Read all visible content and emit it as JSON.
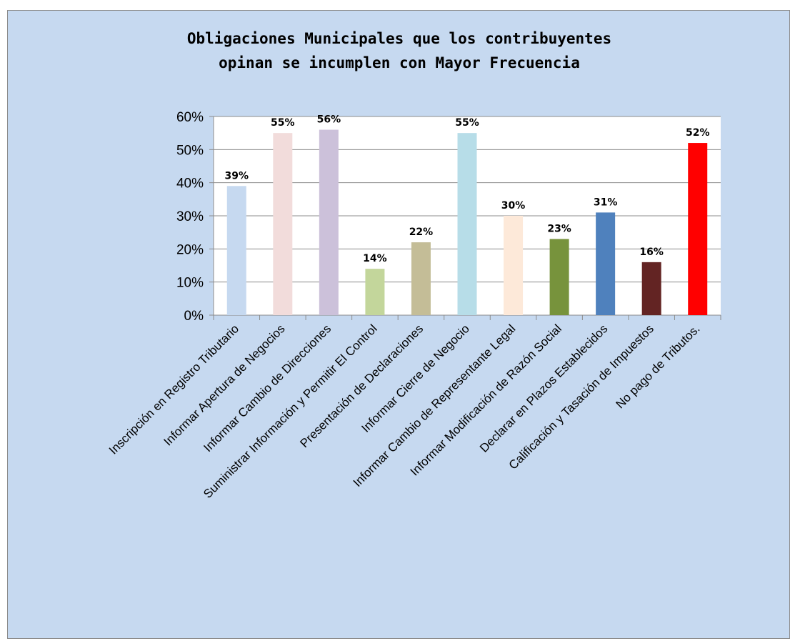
{
  "chart_data": {
    "type": "bar",
    "title_lines": [
      "Obligaciones Municipales que los contribuyentes",
      "opinan se incumplen con Mayor Frecuencia"
    ],
    "categories": [
      "Inscripción en Registro Tributario",
      "Informar Apertura de Negocios",
      "Informar Cambio de Direcciones",
      "Suministrar Información y Permitir El Control",
      "Presentación de Declaraciones",
      "Informar Cierre de Negocio",
      "Informar Cambio de Representante Legal",
      "Informar Modificación de Razón Social",
      "Declarar en Plazos Establecidos",
      "Calificación y Tasación de Impuestos",
      "No pago de Tributos."
    ],
    "values": [
      39,
      55,
      56,
      14,
      22,
      55,
      30,
      23,
      31,
      16,
      52
    ],
    "value_labels": [
      "39%",
      "55%",
      "56%",
      "14%",
      "22%",
      "55%",
      "30%",
      "23%",
      "31%",
      "16%",
      "52%"
    ],
    "bar_colors": [
      "#c6d9f0",
      "#f2dcdb",
      "#ccc1da",
      "#c3d69b",
      "#c4bd97",
      "#b7dde8",
      "#fde9d9",
      "#77933c",
      "#4f81bd",
      "#632423",
      "#ff0000"
    ],
    "y_ticks": [
      "0%",
      "10%",
      "20%",
      "30%",
      "40%",
      "50%",
      "60%"
    ],
    "ylim": [
      0,
      60
    ],
    "grid": true,
    "legend": "none"
  },
  "colors": {
    "chart_background": "#c6d9f0",
    "plot_background": "#ffffff",
    "gridline": "#8c8c8c"
  }
}
